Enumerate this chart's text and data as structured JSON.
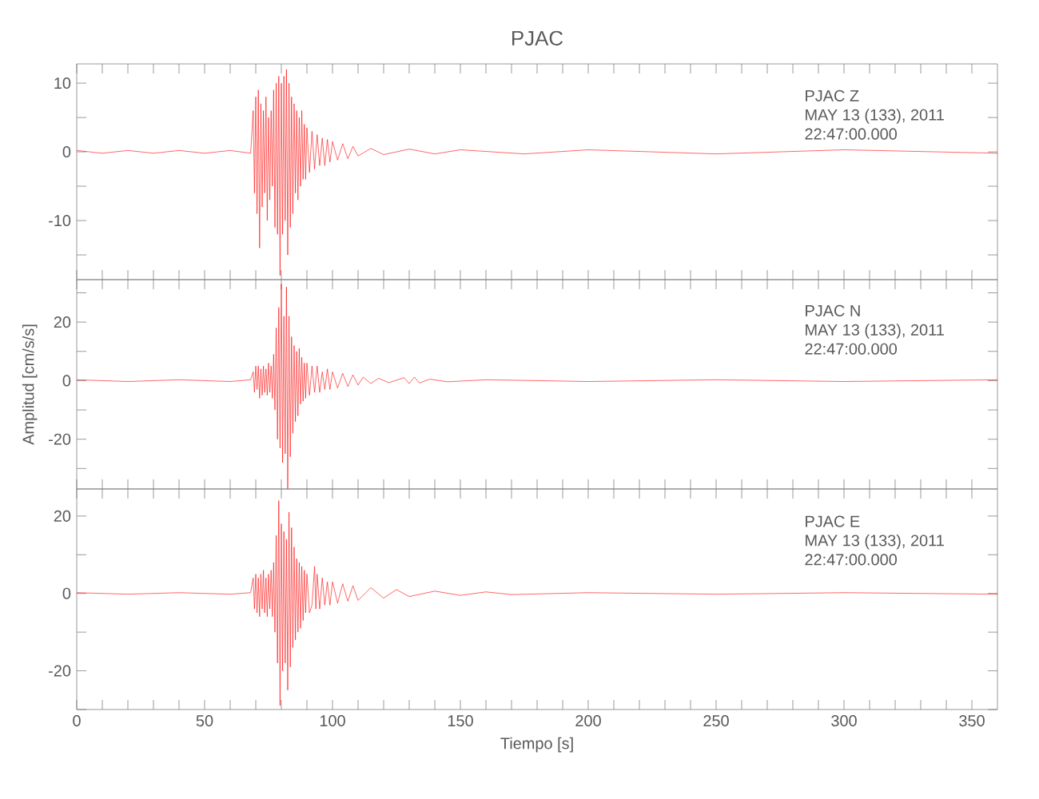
{
  "chart_data": [
    {
      "type": "line",
      "title": "PJAC",
      "xlim": [
        0,
        360
      ],
      "ylim": [
        -18.6,
        12.8
      ],
      "tick_labels": "y",
      "xticks": [
        0,
        {
          "value": 10,
          "label": null
        },
        {
          "value": 20,
          "label": null
        },
        {
          "value": 30,
          "label": null
        },
        {
          "value": 40,
          "label": null
        },
        50,
        {
          "value": 60,
          "label": null
        },
        {
          "value": 70,
          "label": null
        },
        {
          "value": 80,
          "label": null
        },
        {
          "value": 90,
          "label": null
        },
        100,
        {
          "value": 110,
          "label": null
        },
        {
          "value": 120,
          "label": null
        },
        {
          "value": 130,
          "label": null
        },
        {
          "value": 140,
          "label": null
        },
        150,
        {
          "value": 160,
          "label": null
        },
        {
          "value": 170,
          "label": null
        },
        {
          "value": 180,
          "label": null
        },
        {
          "value": 190,
          "label": null
        },
        200,
        {
          "value": 210,
          "label": null
        },
        {
          "value": 220,
          "label": null
        },
        {
          "value": 230,
          "label": null
        },
        {
          "value": 240,
          "label": null
        },
        250,
        {
          "value": 260,
          "label": null
        },
        {
          "value": 270,
          "label": null
        },
        {
          "value": 280,
          "label": null
        },
        {
          "value": 290,
          "label": null
        },
        300,
        {
          "value": 310,
          "label": null
        },
        {
          "value": 320,
          "label": null
        },
        {
          "value": 330,
          "label": null
        },
        {
          "value": 340,
          "label": null
        },
        350
      ],
      "yticks": [
        {
          "value": -15,
          "label": null
        },
        -10,
        {
          "value": -5,
          "label": null
        },
        0,
        {
          "value": 5,
          "label": null
        },
        10
      ],
      "annotations": [
        "PJAC   Z",
        "MAY 13 (133), 2011",
        "22:47:00.000"
      ],
      "series": [
        {
          "color": "#ff0000",
          "x": [
            0,
            10,
            20,
            30,
            40,
            50,
            60,
            68,
            69,
            69.5,
            70,
            70.5,
            71,
            71.5,
            72,
            72.5,
            73,
            73.5,
            74,
            74.5,
            75,
            75.5,
            76,
            76.5,
            77,
            77.5,
            78,
            78.5,
            79,
            79.5,
            80,
            80.5,
            81,
            81.5,
            82,
            82.5,
            83,
            83.5,
            84,
            84.5,
            85,
            85.5,
            86,
            86.5,
            87,
            87.5,
            88,
            88.5,
            89,
            89.5,
            90,
            91,
            92,
            93,
            94,
            95,
            96,
            97,
            98,
            99,
            100,
            102,
            104,
            106,
            108,
            110,
            115,
            120,
            130,
            140,
            150,
            175,
            200,
            250,
            300,
            360
          ],
          "values": [
            0.2,
            -0.2,
            0.2,
            -0.2,
            0.2,
            -0.2,
            0.2,
            -0.2,
            6,
            -6,
            8,
            -9,
            9,
            -14,
            7,
            -8,
            6,
            -6,
            8,
            -10,
            5,
            -7,
            6,
            -5,
            9,
            -11,
            10,
            -12,
            11,
            -18,
            10,
            -12,
            11,
            -10,
            12,
            -15,
            10,
            -11,
            8,
            -9,
            7,
            -6,
            6,
            -7,
            5,
            -5,
            6,
            -4,
            4,
            -4,
            3.5,
            -3,
            3,
            -2.5,
            2.5,
            -2,
            2,
            -2,
            1.8,
            -1.5,
            1.5,
            -1.2,
            1.2,
            -1,
            0.8,
            -0.6,
            0.5,
            -0.4,
            0.4,
            -0.3,
            0.3,
            -0.3,
            0.3,
            -0.3,
            0.3,
            -0.2
          ]
        }
      ]
    },
    {
      "type": "line",
      "ylabel": "Amplitud [cm/s/s]",
      "xlim": [
        0,
        360
      ],
      "ylim": [
        -37,
        34.5
      ],
      "tick_labels": "y",
      "xticks": [
        0,
        {
          "value": 10,
          "label": null
        },
        {
          "value": 20,
          "label": null
        },
        {
          "value": 30,
          "label": null
        },
        {
          "value": 40,
          "label": null
        },
        50,
        {
          "value": 60,
          "label": null
        },
        {
          "value": 70,
          "label": null
        },
        {
          "value": 80,
          "label": null
        },
        {
          "value": 90,
          "label": null
        },
        100,
        {
          "value": 110,
          "label": null
        },
        {
          "value": 120,
          "label": null
        },
        {
          "value": 130,
          "label": null
        },
        {
          "value": 140,
          "label": null
        },
        150,
        {
          "value": 160,
          "label": null
        },
        {
          "value": 170,
          "label": null
        },
        {
          "value": 180,
          "label": null
        },
        {
          "value": 190,
          "label": null
        },
        200,
        {
          "value": 210,
          "label": null
        },
        {
          "value": 220,
          "label": null
        },
        {
          "value": 230,
          "label": null
        },
        {
          "value": 240,
          "label": null
        },
        250,
        {
          "value": 260,
          "label": null
        },
        {
          "value": 270,
          "label": null
        },
        {
          "value": 280,
          "label": null
        },
        {
          "value": 290,
          "label": null
        },
        300,
        {
          "value": 310,
          "label": null
        },
        {
          "value": 320,
          "label": null
        },
        {
          "value": 330,
          "label": null
        },
        {
          "value": 340,
          "label": null
        },
        350
      ],
      "yticks": [
        {
          "value": -30,
          "label": null
        },
        -20,
        {
          "value": -10,
          "label": null
        },
        0,
        {
          "value": 10,
          "label": null
        },
        20,
        {
          "value": 30,
          "label": null
        }
      ],
      "annotations": [
        "PJAC   N",
        "MAY 13 (133), 2011",
        "22:47:00.000"
      ],
      "series": [
        {
          "color": "#ff0000",
          "x": [
            0,
            20,
            40,
            60,
            68,
            69,
            69.5,
            70,
            70.5,
            71,
            71.5,
            72,
            72.5,
            73,
            73.5,
            74,
            74.5,
            75,
            75.5,
            76,
            76.5,
            77,
            77.5,
            78,
            78.5,
            79,
            79.5,
            80,
            80.5,
            81,
            81.5,
            82,
            82.5,
            83,
            83.5,
            84,
            84.5,
            85,
            85.5,
            86,
            86.5,
            87,
            87.5,
            88,
            88.5,
            89,
            89.5,
            90,
            91,
            92,
            93,
            94,
            95,
            96,
            97,
            98,
            99,
            100,
            102,
            104,
            106,
            108,
            110,
            112,
            115,
            118,
            122,
            128,
            130,
            132,
            134,
            138,
            145,
            160,
            200,
            250,
            300,
            360
          ],
          "values": [
            0.3,
            -0.3,
            0.3,
            -0.3,
            0.3,
            3,
            -4,
            5,
            -3,
            5,
            -6,
            4,
            -5,
            5,
            -4,
            4,
            -5,
            6,
            -4,
            5,
            -6,
            9,
            -10,
            18,
            -20,
            25,
            -23,
            33,
            -28,
            22,
            -25,
            32,
            -37,
            22,
            -26,
            15,
            -18,
            12,
            -14,
            10,
            -12,
            11,
            -8,
            8,
            -7,
            6,
            -6,
            6,
            -5,
            5,
            -4,
            5,
            -4,
            3,
            -3,
            4,
            -3,
            3,
            -2.5,
            2.5,
            -2,
            2,
            -1.5,
            1.2,
            -1,
            0.8,
            -0.7,
            1,
            -1,
            1.2,
            -0.8,
            0.5,
            -0.4,
            0.3,
            -0.3,
            0.3,
            -0.3,
            0.3
          ]
        }
      ]
    },
    {
      "type": "line",
      "xlabel": "Tiempo [s]",
      "xlim": [
        0,
        360
      ],
      "ylim": [
        -30,
        27
      ],
      "xticks": [
        0,
        {
          "value": 10,
          "label": null
        },
        {
          "value": 20,
          "label": null
        },
        {
          "value": 30,
          "label": null
        },
        {
          "value": 40,
          "label": null
        },
        50,
        {
          "value": 60,
          "label": null
        },
        {
          "value": 70,
          "label": null
        },
        {
          "value": 80,
          "label": null
        },
        {
          "value": 90,
          "label": null
        },
        100,
        {
          "value": 110,
          "label": null
        },
        {
          "value": 120,
          "label": null
        },
        {
          "value": 130,
          "label": null
        },
        {
          "value": 140,
          "label": null
        },
        150,
        {
          "value": 160,
          "label": null
        },
        {
          "value": 170,
          "label": null
        },
        {
          "value": 180,
          "label": null
        },
        {
          "value": 190,
          "label": null
        },
        200,
        {
          "value": 210,
          "label": null
        },
        {
          "value": 220,
          "label": null
        },
        {
          "value": 230,
          "label": null
        },
        {
          "value": 240,
          "label": null
        },
        250,
        {
          "value": 260,
          "label": null
        },
        {
          "value": 270,
          "label": null
        },
        {
          "value": 280,
          "label": null
        },
        {
          "value": 290,
          "label": null
        },
        300,
        {
          "value": 310,
          "label": null
        },
        {
          "value": 320,
          "label": null
        },
        {
          "value": 330,
          "label": null
        },
        {
          "value": 340,
          "label": null
        },
        350
      ],
      "yticks": [
        {
          "value": -30,
          "label": null
        },
        -20,
        {
          "value": -10,
          "label": null
        },
        0,
        {
          "value": 10,
          "label": null
        },
        20
      ],
      "annotations": [
        "PJAC   E",
        "MAY 13 (133), 2011",
        "22:47:00.000"
      ],
      "series": [
        {
          "color": "#ff0000",
          "x": [
            0,
            20,
            40,
            60,
            68,
            69,
            69.5,
            70,
            70.5,
            71,
            71.5,
            72,
            72.5,
            73,
            73.5,
            74,
            74.5,
            75,
            75.5,
            76,
            76.5,
            77,
            77.5,
            78,
            78.5,
            79,
            79.5,
            80,
            80.5,
            81,
            81.5,
            82,
            82.5,
            83,
            83.5,
            84,
            84.5,
            85,
            85.5,
            86,
            86.5,
            87,
            87.5,
            88,
            88.5,
            89,
            89.5,
            90,
            91,
            92,
            93,
            93.5,
            94,
            95,
            96,
            97,
            98,
            99,
            100,
            102,
            104,
            106,
            108,
            110,
            115,
            120,
            125,
            130,
            140,
            150,
            160,
            170,
            200,
            250,
            300,
            360
          ],
          "values": [
            0.2,
            -0.2,
            0.2,
            -0.2,
            0.2,
            4,
            -4,
            5,
            -5,
            4,
            -6,
            5,
            -4,
            6,
            -5,
            4,
            -6,
            5,
            -4,
            6,
            -6,
            8,
            -10,
            15,
            -18,
            24,
            -29,
            18,
            -20,
            16,
            -18,
            14,
            -25,
            21,
            -19,
            17,
            -14,
            12,
            -12,
            9,
            -10,
            8,
            -9,
            7,
            -7,
            6,
            -5,
            5,
            -5,
            -3,
            7,
            -4,
            5,
            -4,
            4,
            -3,
            3,
            -3,
            3,
            -2.5,
            2.5,
            -2,
            2,
            -1.8,
            1.5,
            -1.2,
            1,
            -0.8,
            0.6,
            -0.5,
            0.4,
            -0.3,
            0.2,
            -0.2,
            0.2,
            -0.2
          ]
        }
      ]
    }
  ]
}
